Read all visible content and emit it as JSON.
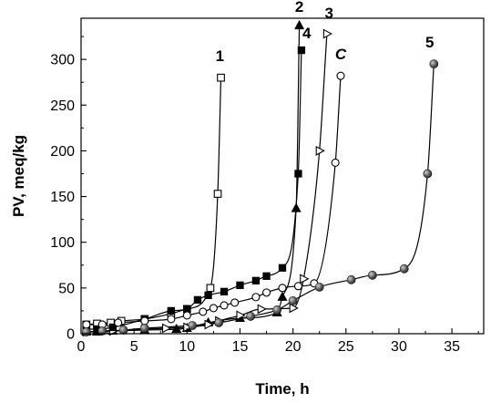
{
  "chart_data": {
    "type": "line",
    "xlabel": "Time, h",
    "ylabel": "PV, meq/kg",
    "xlim": [
      0,
      38
    ],
    "ylim": [
      0,
      345
    ],
    "xticks": [
      0,
      5,
      10,
      15,
      20,
      25,
      30,
      35
    ],
    "yticks": [
      0,
      50,
      100,
      150,
      200,
      250,
      300
    ],
    "grid": false,
    "series": [
      {
        "name": "1",
        "marker": "open-square",
        "points": [
          [
            0.5,
            10
          ],
          [
            1.5,
            11
          ],
          [
            2.8,
            12
          ],
          [
            3.8,
            14
          ],
          [
            6,
            16
          ],
          [
            8.5,
            22
          ],
          [
            10,
            27
          ],
          [
            12.2,
            50
          ],
          [
            12.9,
            153
          ],
          [
            13.2,
            280
          ]
        ]
      },
      {
        "name": "2",
        "marker": "filled-triangle",
        "points": [
          [
            0.5,
            2
          ],
          [
            1.5,
            2
          ],
          [
            3,
            3
          ],
          [
            6,
            4
          ],
          [
            9,
            5
          ],
          [
            10,
            6
          ],
          [
            12,
            12
          ],
          [
            15,
            17
          ],
          [
            18.5,
            23
          ],
          [
            19,
            40
          ],
          [
            20.3,
            137
          ],
          [
            20.6,
            337
          ]
        ]
      },
      {
        "name": "3",
        "marker": "open-triangle-right",
        "points": [
          [
            0.5,
            2
          ],
          [
            2,
            3
          ],
          [
            3,
            3
          ],
          [
            6,
            5
          ],
          [
            8,
            6
          ],
          [
            10,
            7
          ],
          [
            12,
            10
          ],
          [
            13,
            14
          ],
          [
            15,
            20
          ],
          [
            17,
            27
          ],
          [
            20,
            28
          ],
          [
            21,
            60
          ],
          [
            22.5,
            200
          ],
          [
            23.2,
            328
          ]
        ]
      },
      {
        "name": "4",
        "marker": "filled-square",
        "points": [
          [
            0.5,
            5
          ],
          [
            1.5,
            5
          ],
          [
            3,
            7
          ],
          [
            6,
            16
          ],
          [
            8.5,
            25
          ],
          [
            10,
            27
          ],
          [
            11,
            37
          ],
          [
            12,
            42
          ],
          [
            13.5,
            46
          ],
          [
            15,
            53
          ],
          [
            16.5,
            58
          ],
          [
            17.5,
            63
          ],
          [
            19,
            72
          ],
          [
            20.5,
            175
          ],
          [
            20.8,
            310
          ]
        ]
      },
      {
        "name": "C",
        "marker": "open-circle",
        "points": [
          [
            0.5,
            10
          ],
          [
            2,
            10
          ],
          [
            3.5,
            12
          ],
          [
            6,
            14
          ],
          [
            8.5,
            16
          ],
          [
            10,
            20
          ],
          [
            11.5,
            24
          ],
          [
            12.5,
            28
          ],
          [
            13.5,
            31
          ],
          [
            14.5,
            34
          ],
          [
            16.5,
            40
          ],
          [
            17.5,
            45
          ],
          [
            19,
            50
          ],
          [
            20.5,
            52
          ],
          [
            22,
            55
          ],
          [
            24,
            187
          ],
          [
            24.5,
            282
          ]
        ]
      },
      {
        "name": "5",
        "marker": "filled-sphere",
        "points": [
          [
            0.5,
            2
          ],
          [
            2,
            3
          ],
          [
            4,
            4
          ],
          [
            6,
            6
          ],
          [
            10.5,
            9
          ],
          [
            13,
            12
          ],
          [
            16,
            19
          ],
          [
            18.5,
            26
          ],
          [
            20,
            36
          ],
          [
            22.5,
            51
          ],
          [
            25.5,
            59
          ],
          [
            27.5,
            64
          ],
          [
            30.5,
            71
          ],
          [
            32.7,
            175
          ],
          [
            33.3,
            295
          ]
        ]
      }
    ],
    "labels": [
      {
        "text": "1",
        "x": 13.1,
        "y": 298
      },
      {
        "text": "2",
        "x": 20.6,
        "y": 352
      },
      {
        "text": "4",
        "x": 21.3,
        "y": 323
      },
      {
        "text": "3",
        "x": 23.4,
        "y": 345
      },
      {
        "text": "C",
        "x": 24.5,
        "y": 300
      },
      {
        "text": "5",
        "x": 32.9,
        "y": 313
      }
    ]
  }
}
